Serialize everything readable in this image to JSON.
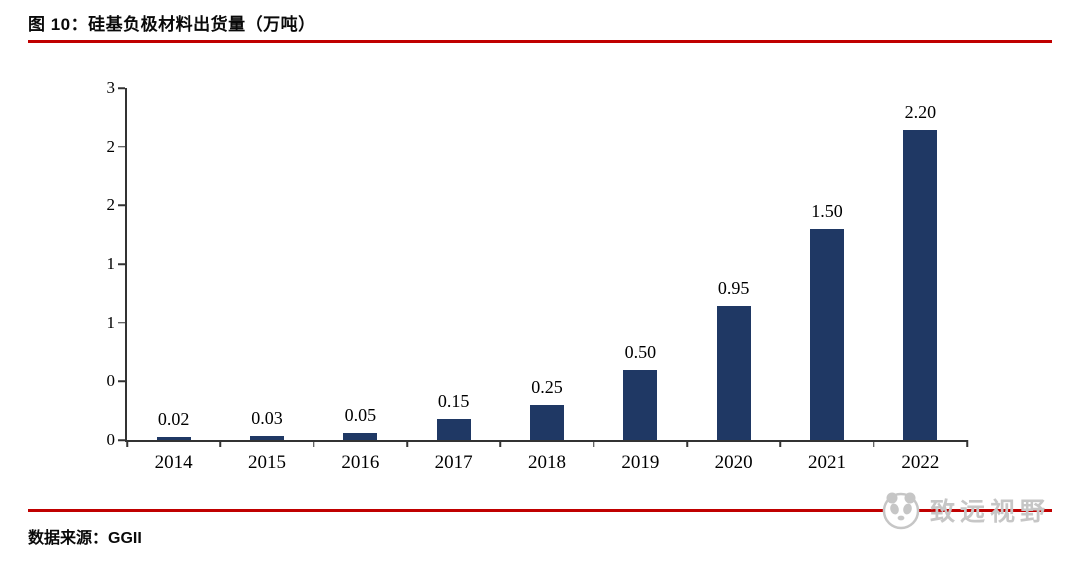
{
  "header": {
    "title": "图 10：硅基负极材料出货量（万吨）"
  },
  "footer": {
    "source": "数据来源：GGII",
    "logo_text": "致远视野"
  },
  "colors": {
    "bar": "#1f3864",
    "accent_red": "#c00000",
    "axis": "#333333"
  },
  "chart_data": {
    "type": "bar",
    "title": "硅基负极材料出货量（万吨）",
    "categories": [
      "2014",
      "2015",
      "2016",
      "2017",
      "2018",
      "2019",
      "2020",
      "2021",
      "2022"
    ],
    "values": [
      0.02,
      0.03,
      0.05,
      0.15,
      0.25,
      0.5,
      0.95,
      1.5,
      2.2
    ],
    "data_labels": [
      "0.02",
      "0.03",
      "0.05",
      "0.15",
      "0.25",
      "0.50",
      "0.95",
      "1.50",
      "2.20"
    ],
    "xlabel": "",
    "ylabel": "",
    "ylim": [
      0,
      2.5
    ],
    "y_tick_labels_top_to_bottom": [
      "3",
      "2",
      "2",
      "1",
      "1",
      "0",
      "0"
    ],
    "grid": false,
    "legend": "none"
  }
}
